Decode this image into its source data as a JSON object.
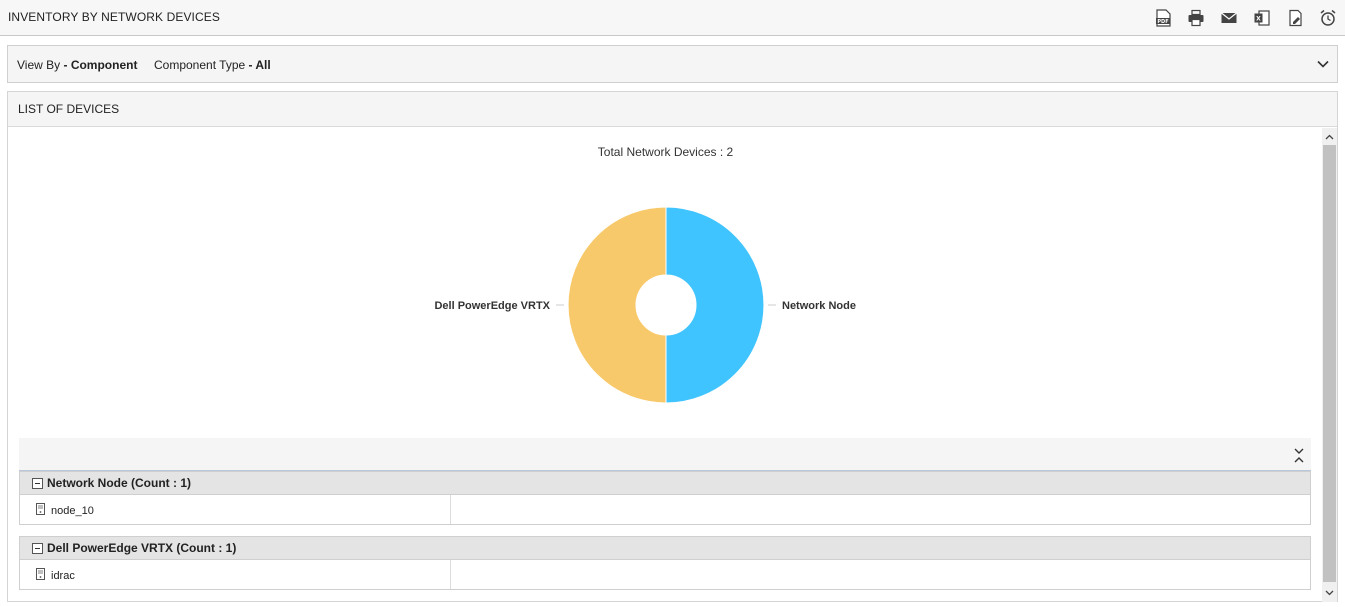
{
  "header": {
    "title": "INVENTORY BY NETWORK DEVICES",
    "toolbar": [
      {
        "name": "pdf-export-icon"
      },
      {
        "name": "print-icon"
      },
      {
        "name": "email-icon"
      },
      {
        "name": "excel-export-icon"
      },
      {
        "name": "csv-export-icon"
      },
      {
        "name": "schedule-alarm-icon"
      }
    ]
  },
  "filter": {
    "view_by_label": "View By",
    "view_by_sep": " - ",
    "view_by_value": "Component",
    "component_type_label": "Component Type",
    "component_type_sep": " - ",
    "component_type_value": "All"
  },
  "panel": {
    "title": "LIST OF DEVICES"
  },
  "chart_data": {
    "type": "pie",
    "title": "Total Network Devices : 2",
    "categories": [
      "Network Node",
      "Dell PowerEdge VRTX"
    ],
    "values": [
      1,
      1
    ],
    "colors": [
      "#40c4ff",
      "#f8c96b"
    ],
    "legend": "none"
  },
  "groups": [
    {
      "title": "Network Node (Count : 1)",
      "devices": [
        "node_10"
      ]
    },
    {
      "title": "Dell PowerEdge VRTX (Count : 1)",
      "devices": [
        "idrac"
      ]
    }
  ]
}
